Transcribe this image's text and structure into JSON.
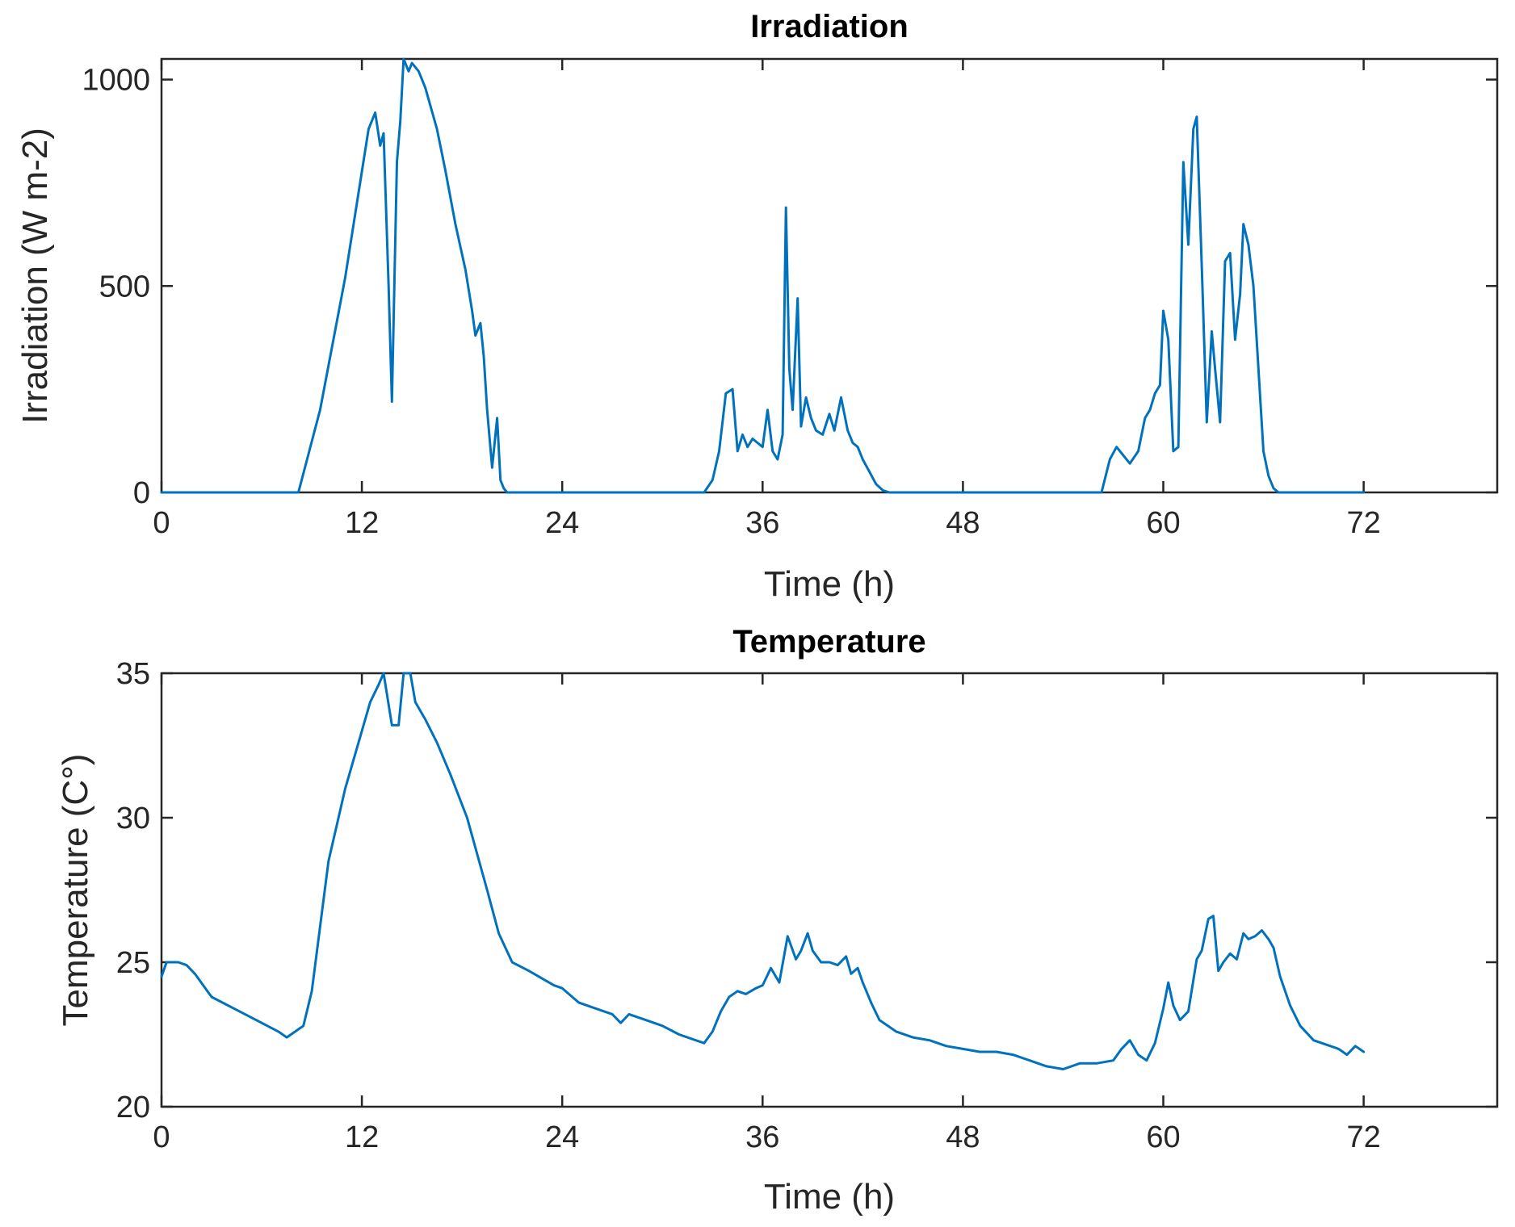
{
  "colors": {
    "series": "#0072BD",
    "axes": "#262626",
    "background": "#ffffff"
  },
  "chart_data": [
    {
      "type": "line",
      "title": "Irradiation",
      "xlabel": "Time (h)",
      "ylabel": "Irradiation (W m-2)",
      "xlim": [
        0,
        80
      ],
      "ylim": [
        0,
        1050
      ],
      "xticks": [
        0,
        12,
        24,
        36,
        48,
        60,
        72
      ],
      "yticks": [
        0,
        500,
        1000
      ],
      "grid": false,
      "series": [
        {
          "x": [
            0,
            8.2,
            9.5,
            11,
            12.4,
            12.8,
            13.1,
            13.3,
            13.6,
            13.8,
            14.1,
            14.3,
            14.5,
            14.8,
            15,
            15.4,
            15.8,
            16.5,
            17,
            17.6,
            18.2,
            18.6,
            18.8,
            19.1,
            19.3,
            19.5,
            19.8,
            20.1,
            20.3,
            20.5,
            20.7,
            20.9,
            21.1,
            21.6,
            32.5,
            33,
            33.4,
            33.8,
            34.2,
            34.5,
            34.8,
            35.1,
            35.4,
            35.7,
            36,
            36.3,
            36.6,
            36.9,
            37.2,
            37.4,
            37.6,
            37.8,
            38.1,
            38.3,
            38.6,
            38.9,
            39.2,
            39.6,
            40,
            40.3,
            40.7,
            41.1,
            41.4,
            41.7,
            42,
            42.4,
            42.8,
            43.2,
            43.6,
            44.2,
            45,
            56.3,
            56.8,
            57.2,
            57.6,
            58,
            58.5,
            58.9,
            59.2,
            59.5,
            59.8,
            60,
            60.3,
            60.6,
            60.9,
            61.2,
            61.5,
            61.8,
            62,
            62.3,
            62.6,
            62.9,
            63.1,
            63.4,
            63.7,
            64,
            64.3,
            64.6,
            64.8,
            65.1,
            65.4,
            65.7,
            66,
            66.3,
            66.6,
            66.9,
            67.2,
            67.6,
            68,
            68.6,
            69.5,
            72
          ],
          "y": [
            0,
            0,
            200,
            520,
            880,
            920,
            840,
            870,
            500,
            220,
            800,
            900,
            1050,
            1020,
            1040,
            1020,
            980,
            880,
            780,
            650,
            540,
            440,
            380,
            410,
            330,
            200,
            60,
            180,
            30,
            10,
            0,
            0,
            0,
            0,
            0,
            30,
            100,
            240,
            250,
            100,
            140,
            110,
            130,
            120,
            110,
            200,
            100,
            80,
            140,
            690,
            300,
            200,
            470,
            160,
            230,
            180,
            150,
            140,
            190,
            150,
            230,
            150,
            120,
            110,
            80,
            50,
            20,
            5,
            0,
            0,
            0,
            0,
            80,
            110,
            90,
            70,
            100,
            180,
            200,
            240,
            260,
            440,
            370,
            100,
            110,
            800,
            600,
            880,
            910,
            550,
            170,
            390,
            300,
            170,
            560,
            580,
            370,
            480,
            650,
            600,
            500,
            300,
            100,
            40,
            10,
            0,
            0,
            0,
            0,
            0,
            0,
            0
          ]
        }
      ]
    },
    {
      "type": "line",
      "title": "Temperature",
      "xlabel": "Time (h)",
      "ylabel": "Temperature (C°)",
      "xlim": [
        0,
        80
      ],
      "ylim": [
        20,
        35
      ],
      "xticks": [
        0,
        12,
        24,
        36,
        48,
        60,
        72
      ],
      "yticks": [
        20,
        25,
        30,
        35
      ],
      "grid": false,
      "series": [
        {
          "x": [
            0,
            0.3,
            1,
            1.5,
            2,
            3,
            5,
            7,
            7.5,
            8.5,
            9,
            10,
            11,
            12,
            12.5,
            13,
            13.3,
            13.8,
            14.2,
            14.5,
            14.9,
            15.2,
            15.8,
            16.5,
            17.3,
            18.3,
            19.5,
            20.2,
            21,
            22,
            23.5,
            24,
            25,
            26,
            27,
            27.5,
            28,
            29,
            30,
            31,
            32,
            32.5,
            33,
            33.5,
            34,
            34.5,
            35,
            35.6,
            36,
            36.5,
            37,
            37.5,
            38,
            38.3,
            38.7,
            39,
            39.5,
            40,
            40.5,
            41,
            41.3,
            41.7,
            42,
            42.5,
            43,
            44,
            45,
            46,
            47,
            48,
            49,
            50,
            51,
            52,
            53,
            54,
            55,
            56,
            57,
            57.5,
            58,
            58.5,
            59,
            59.5,
            60,
            60.3,
            60.6,
            61,
            61.5,
            62,
            62.3,
            62.7,
            63,
            63.3,
            63.6,
            64,
            64.4,
            64.8,
            65.1,
            65.5,
            65.9,
            66.3,
            66.6,
            67,
            67.6,
            68.2,
            69,
            70,
            70.5,
            71,
            71.5,
            72
          ],
          "y": [
            24.5,
            25,
            25,
            24.9,
            24.6,
            23.8,
            23.2,
            22.6,
            22.4,
            22.8,
            24,
            28.5,
            31,
            33,
            34,
            34.6,
            35,
            33.2,
            33.2,
            35,
            35.1,
            34,
            33.4,
            32.6,
            31.5,
            30,
            27.5,
            26,
            25,
            24.7,
            24.2,
            24.1,
            23.6,
            23.4,
            23.2,
            22.9,
            23.2,
            23,
            22.8,
            22.5,
            22.3,
            22.2,
            22.6,
            23.3,
            23.8,
            24,
            23.9,
            24.1,
            24.2,
            24.8,
            24.3,
            25.9,
            25.1,
            25.4,
            26,
            25.4,
            25,
            25,
            24.9,
            25.2,
            24.6,
            24.8,
            24.3,
            23.6,
            23,
            22.6,
            22.4,
            22.3,
            22.1,
            22,
            21.9,
            21.9,
            21.8,
            21.6,
            21.4,
            21.3,
            21.5,
            21.5,
            21.6,
            22,
            22.3,
            21.8,
            21.6,
            22.2,
            23.4,
            24.3,
            23.5,
            23,
            23.3,
            25.1,
            25.4,
            26.5,
            26.6,
            24.7,
            25,
            25.3,
            25.1,
            26,
            25.8,
            25.9,
            26.1,
            25.8,
            25.5,
            24.5,
            23.5,
            22.8,
            22.3,
            22.1,
            22,
            21.8,
            22.1,
            21.9
          ]
        }
      ]
    }
  ]
}
